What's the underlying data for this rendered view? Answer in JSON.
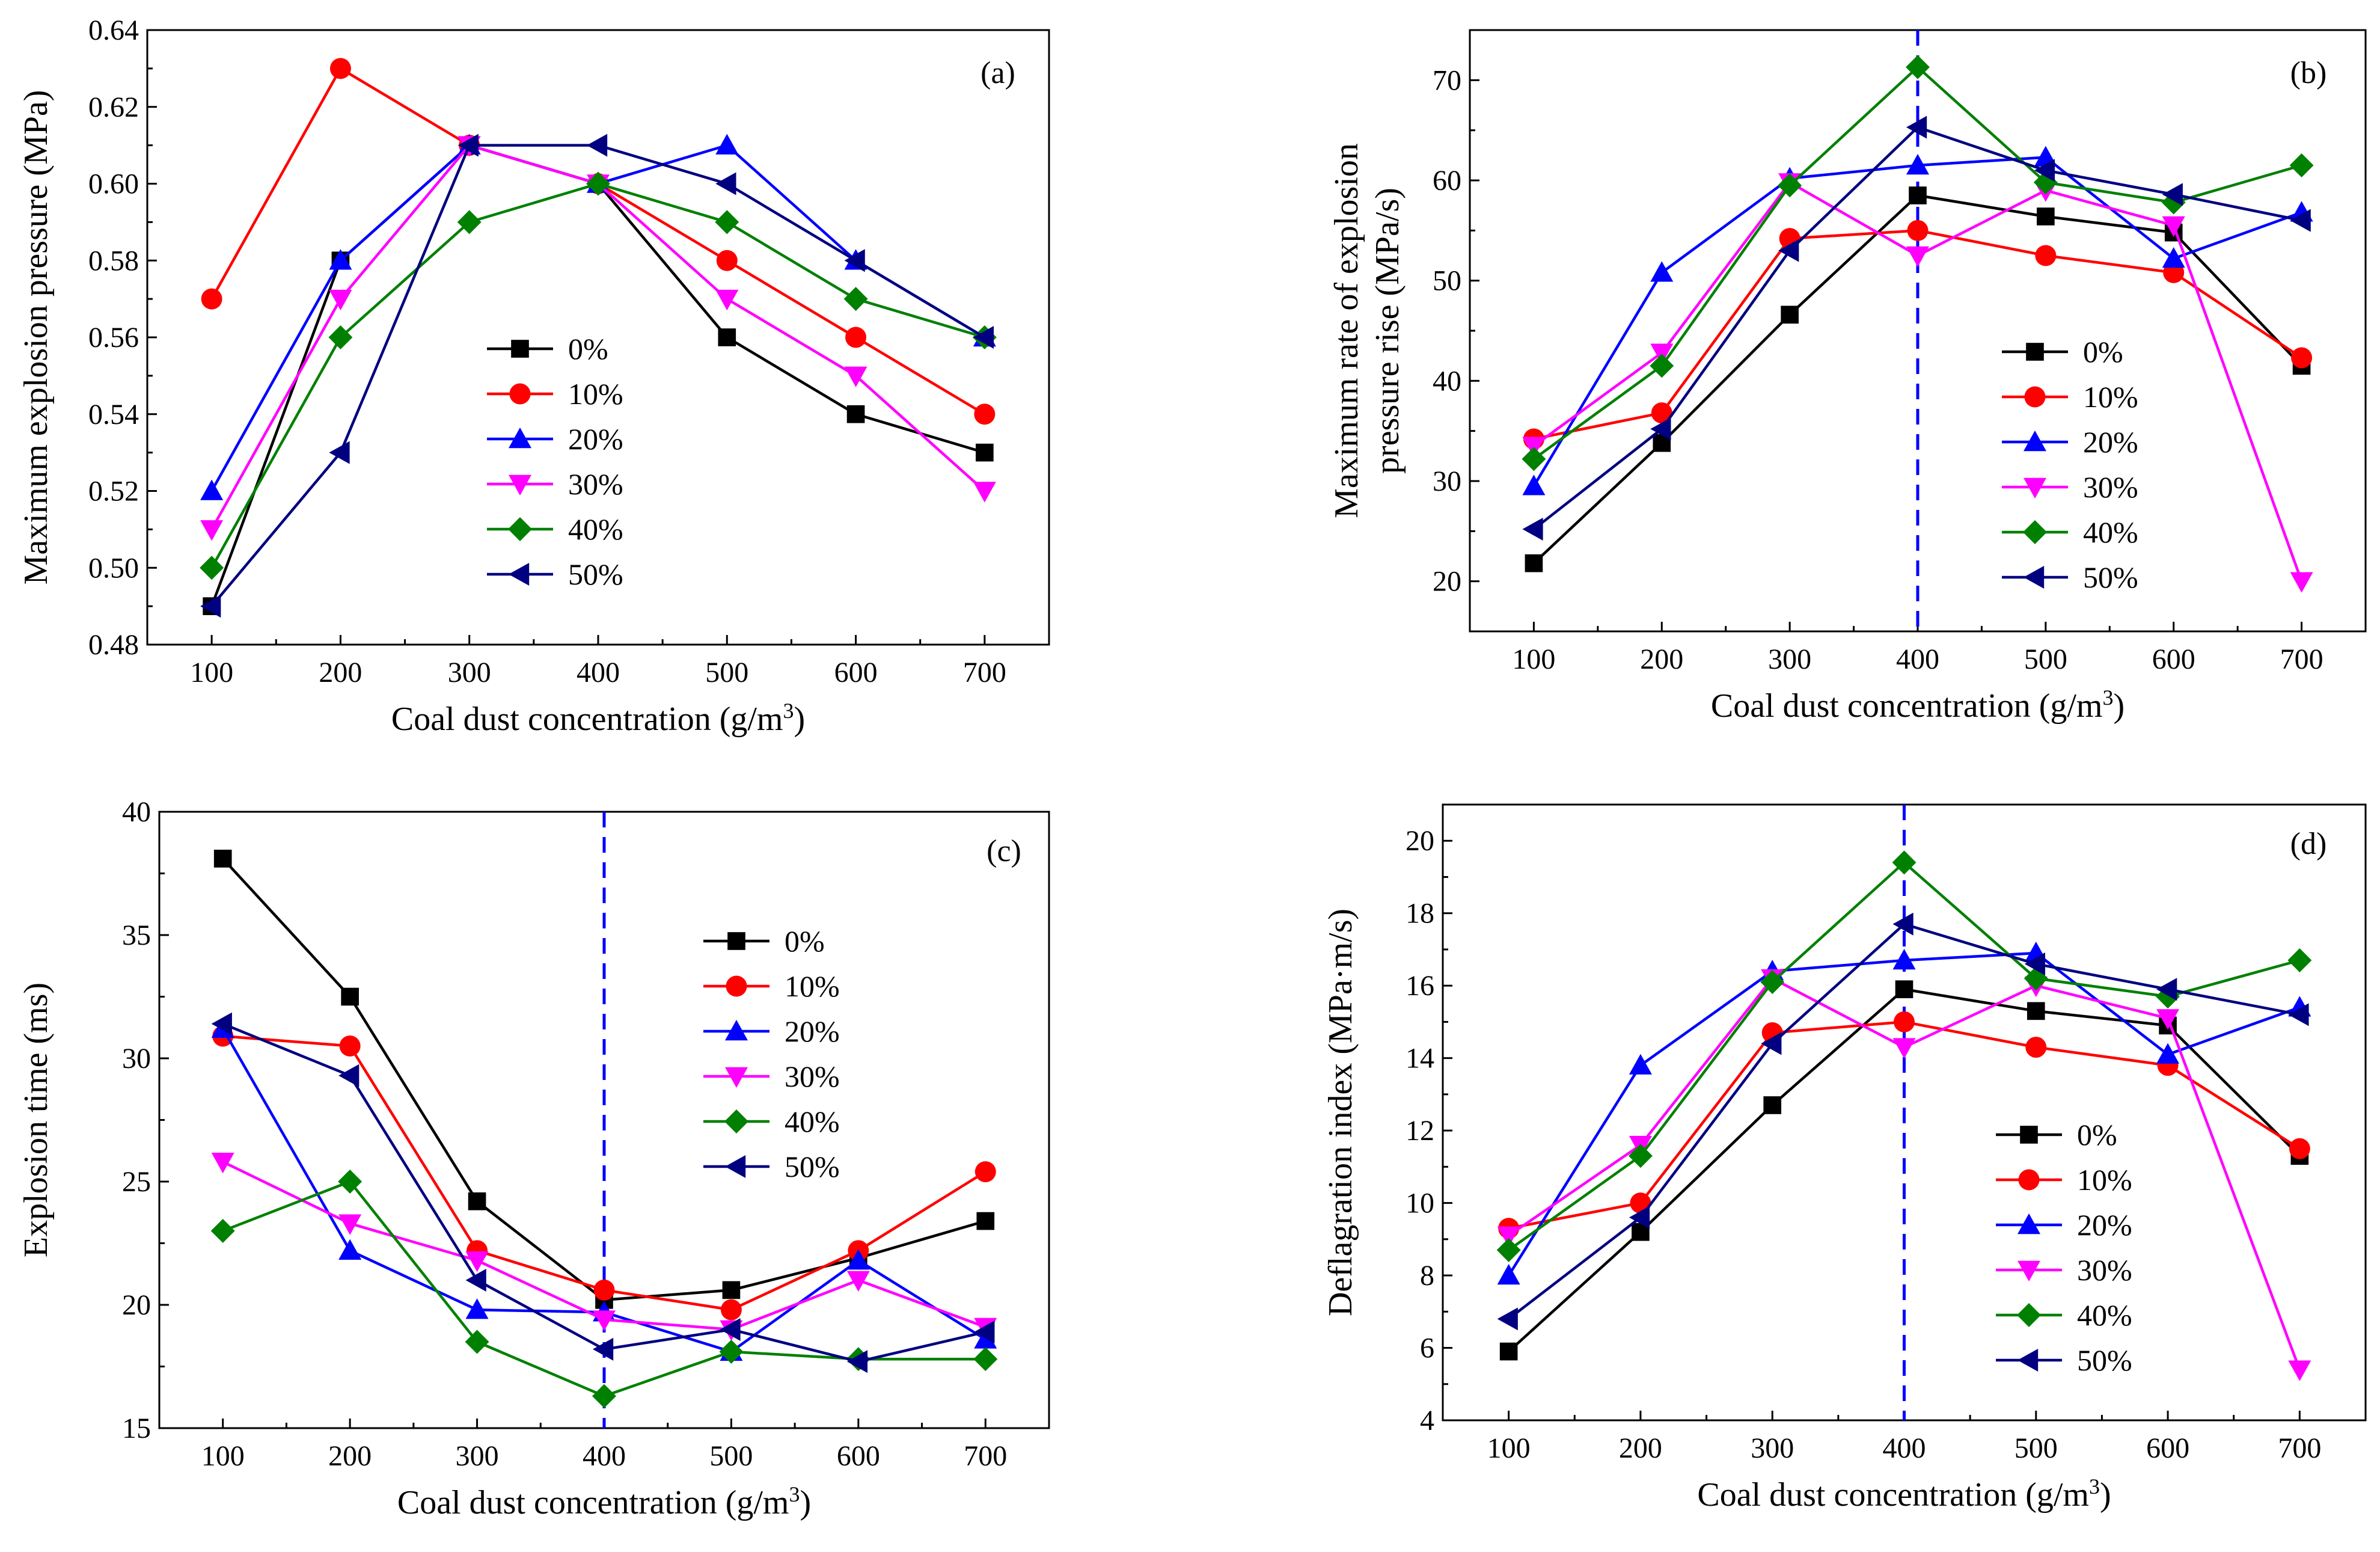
{
  "chart_data": [
    {
      "id": "a",
      "type": "line",
      "panel_label": "(a)",
      "xlabel": "Coal dust concentration (g/m",
      "xlabel_sup": "3",
      "xlabel_end": ")",
      "ylabel": [
        "Maximum explosion pressure (MPa)"
      ],
      "xlim": [
        50,
        750
      ],
      "ylim": [
        0.48,
        0.64
      ],
      "xticks": [
        100,
        200,
        300,
        400,
        500,
        600,
        700
      ],
      "yticks": [
        0.48,
        0.5,
        0.52,
        0.54,
        0.56,
        0.58,
        0.6,
        0.62,
        0.64
      ],
      "ytick_labels": [
        "0.48",
        "0.50",
        "0.52",
        "0.54",
        "0.56",
        "0.58",
        "0.60",
        "0.62",
        "0.64"
      ],
      "vline": null,
      "legend_position": "center",
      "x": [
        100,
        200,
        300,
        400,
        500,
        600,
        700
      ],
      "series": [
        {
          "name": "0%",
          "values": [
            0.49,
            0.58,
            0.61,
            0.6,
            0.56,
            0.54,
            0.53
          ]
        },
        {
          "name": "10%",
          "values": [
            0.57,
            0.63,
            0.61,
            0.6,
            0.58,
            0.56,
            0.54
          ]
        },
        {
          "name": "20%",
          "values": [
            0.52,
            0.58,
            0.61,
            0.6,
            0.61,
            0.58,
            0.56
          ]
        },
        {
          "name": "30%",
          "values": [
            0.51,
            0.57,
            0.61,
            0.6,
            0.57,
            0.55,
            0.52
          ]
        },
        {
          "name": "40%",
          "values": [
            0.5,
            0.56,
            0.59,
            0.6,
            0.59,
            0.57,
            0.56
          ]
        },
        {
          "name": "50%",
          "values": [
            0.49,
            0.53,
            0.61,
            0.61,
            0.6,
            0.58,
            0.56
          ]
        }
      ]
    },
    {
      "id": "b",
      "type": "line",
      "panel_label": "(b)",
      "xlabel": "Coal dust concentration (g/m",
      "xlabel_sup": "3",
      "xlabel_end": ")",
      "ylabel": [
        "Maximum rate of explosion",
        "pressure rise (MPa/s)"
      ],
      "xlim": [
        50,
        750
      ],
      "ylim": [
        15,
        75
      ],
      "xticks": [
        100,
        200,
        300,
        400,
        500,
        600,
        700
      ],
      "yticks": [
        20,
        30,
        40,
        50,
        60,
        70
      ],
      "ytick_labels": [
        "20",
        "30",
        "40",
        "50",
        "60",
        "70"
      ],
      "vline": 400,
      "legend_position": "right",
      "x": [
        100,
        200,
        300,
        400,
        500,
        600,
        700
      ],
      "series": [
        {
          "name": "0%",
          "values": [
            21.8,
            33.8,
            46.6,
            58.5,
            56.4,
            54.8,
            41.5
          ]
        },
        {
          "name": "10%",
          "values": [
            34.2,
            36.8,
            54.2,
            55.0,
            52.5,
            50.8,
            42.3
          ]
        },
        {
          "name": "20%",
          "values": [
            29.5,
            50.8,
            60.2,
            61.5,
            62.3,
            52.2,
            56.8
          ]
        },
        {
          "name": "30%",
          "values": [
            33.5,
            42.8,
            59.8,
            52.5,
            59.0,
            55.5,
            20.0
          ]
        },
        {
          "name": "40%",
          "values": [
            32.2,
            41.5,
            59.5,
            71.3,
            59.8,
            57.8,
            61.5
          ]
        },
        {
          "name": "50%",
          "values": [
            25.2,
            35.2,
            53.0,
            65.3,
            61.0,
            58.6,
            56.0
          ]
        }
      ]
    },
    {
      "id": "c",
      "type": "line",
      "panel_label": "(c)",
      "xlabel": "Coal dust concentration (g/m",
      "xlabel_sup": "3",
      "xlabel_end": ")",
      "ylabel": [
        "Explosion time (ms)"
      ],
      "xlim": [
        50,
        750
      ],
      "ylim": [
        15,
        40
      ],
      "xticks": [
        100,
        200,
        300,
        400,
        500,
        600,
        700
      ],
      "yticks": [
        15,
        20,
        25,
        30,
        35,
        40
      ],
      "ytick_labels": [
        "15",
        "20",
        "25",
        "30",
        "35",
        "40"
      ],
      "vline": 400,
      "legend_position": "center-right",
      "x": [
        100,
        200,
        300,
        400,
        500,
        600,
        700
      ],
      "series": [
        {
          "name": "0%",
          "values": [
            38.1,
            32.5,
            24.2,
            20.2,
            20.6,
            21.9,
            23.4
          ]
        },
        {
          "name": "10%",
          "values": [
            30.9,
            30.5,
            22.2,
            20.6,
            19.8,
            22.2,
            25.4
          ]
        },
        {
          "name": "20%",
          "values": [
            31.2,
            22.2,
            19.8,
            19.7,
            18.1,
            21.8,
            18.6
          ]
        },
        {
          "name": "30%",
          "values": [
            25.8,
            23.3,
            21.8,
            19.4,
            19.0,
            21.0,
            19.1
          ]
        },
        {
          "name": "40%",
          "values": [
            23.0,
            25.0,
            18.5,
            16.3,
            18.1,
            17.8,
            17.8
          ]
        },
        {
          "name": "50%",
          "values": [
            31.4,
            29.3,
            21.0,
            18.2,
            19.0,
            17.7,
            18.9
          ]
        }
      ]
    },
    {
      "id": "d",
      "type": "line",
      "panel_label": "(d)",
      "xlabel": "Coal dust concentration (g/m",
      "xlabel_sup": "3",
      "xlabel_end": ")",
      "ylabel": [
        "Deflagration index (MPa·m/s)"
      ],
      "xlim": [
        50,
        750
      ],
      "ylim": [
        4,
        21
      ],
      "xticks": [
        100,
        200,
        300,
        400,
        500,
        600,
        700
      ],
      "yticks": [
        4,
        6,
        8,
        10,
        12,
        14,
        16,
        18,
        20
      ],
      "ytick_labels": [
        "4",
        "6",
        "8",
        "10",
        "12",
        "14",
        "16",
        "18",
        "20"
      ],
      "vline": 400,
      "legend_position": "bottom-right",
      "x": [
        100,
        200,
        300,
        400,
        500,
        600,
        700
      ],
      "series": [
        {
          "name": "0%",
          "values": [
            5.9,
            9.2,
            12.7,
            15.9,
            15.3,
            14.9,
            11.3
          ]
        },
        {
          "name": "10%",
          "values": [
            9.3,
            10.0,
            14.7,
            15.0,
            14.3,
            13.8,
            11.5
          ]
        },
        {
          "name": "20%",
          "values": [
            8.0,
            13.8,
            16.4,
            16.7,
            16.9,
            14.1,
            15.4
          ]
        },
        {
          "name": "30%",
          "values": [
            9.1,
            11.6,
            16.2,
            14.3,
            16.0,
            15.1,
            5.4
          ]
        },
        {
          "name": "40%",
          "values": [
            8.7,
            11.3,
            16.1,
            19.4,
            16.2,
            15.7,
            16.7
          ]
        },
        {
          "name": "50%",
          "values": [
            6.8,
            9.6,
            14.4,
            17.7,
            16.6,
            15.9,
            15.2
          ]
        }
      ]
    }
  ],
  "series_styles": [
    {
      "name": "0%",
      "color": "#000000",
      "marker": "square"
    },
    {
      "name": "10%",
      "color": "#ff0000",
      "marker": "circle"
    },
    {
      "name": "20%",
      "color": "#0000ff",
      "marker": "triangle-up"
    },
    {
      "name": "30%",
      "color": "#ff00ff",
      "marker": "triangle-down"
    },
    {
      "name": "40%",
      "color": "#008000",
      "marker": "diamond"
    },
    {
      "name": "50%",
      "color": "#000080",
      "marker": "triangle-left"
    }
  ],
  "vline_color": "#0000ff"
}
